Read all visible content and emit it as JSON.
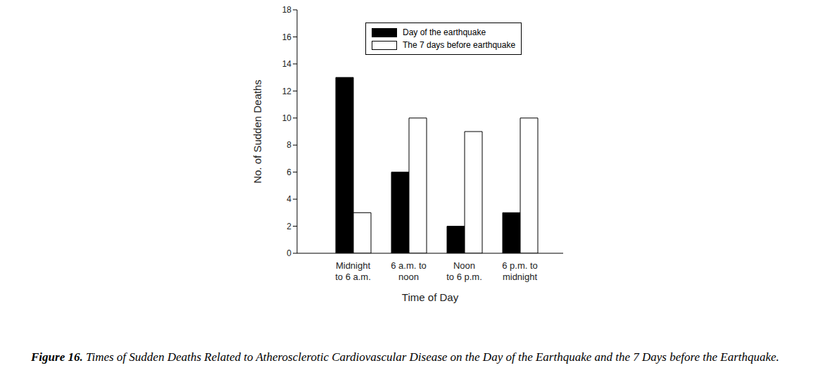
{
  "chart_data": {
    "type": "bar",
    "categories": [
      "Midnight\nto 6 a.m.",
      "6 a.m. to\nnoon",
      "Noon\nto 6 p.m.",
      "6 p.m. to\nmidnight"
    ],
    "series": [
      {
        "name": "Day of the earthquake",
        "color": "#000000",
        "values": [
          13,
          6,
          2,
          3
        ]
      },
      {
        "name": "The 7 days before earthquake",
        "color": "#ffffff",
        "values": [
          3,
          10,
          9,
          10
        ]
      }
    ],
    "x_label": "Time of Day",
    "y_label": "No. of Sudden Deaths",
    "ylim": [
      0,
      18
    ],
    "yticks": [
      0,
      2,
      4,
      6,
      8,
      10,
      12,
      14,
      16,
      18
    ],
    "legend": "upper right",
    "grid": false,
    "caption_label": "Figure 16.",
    "caption": "Times of Sudden Deaths Related to Atherosclerotic Cardiovascular Disease on the Day of the Earthquake and the 7 Days before the Earthquake."
  }
}
